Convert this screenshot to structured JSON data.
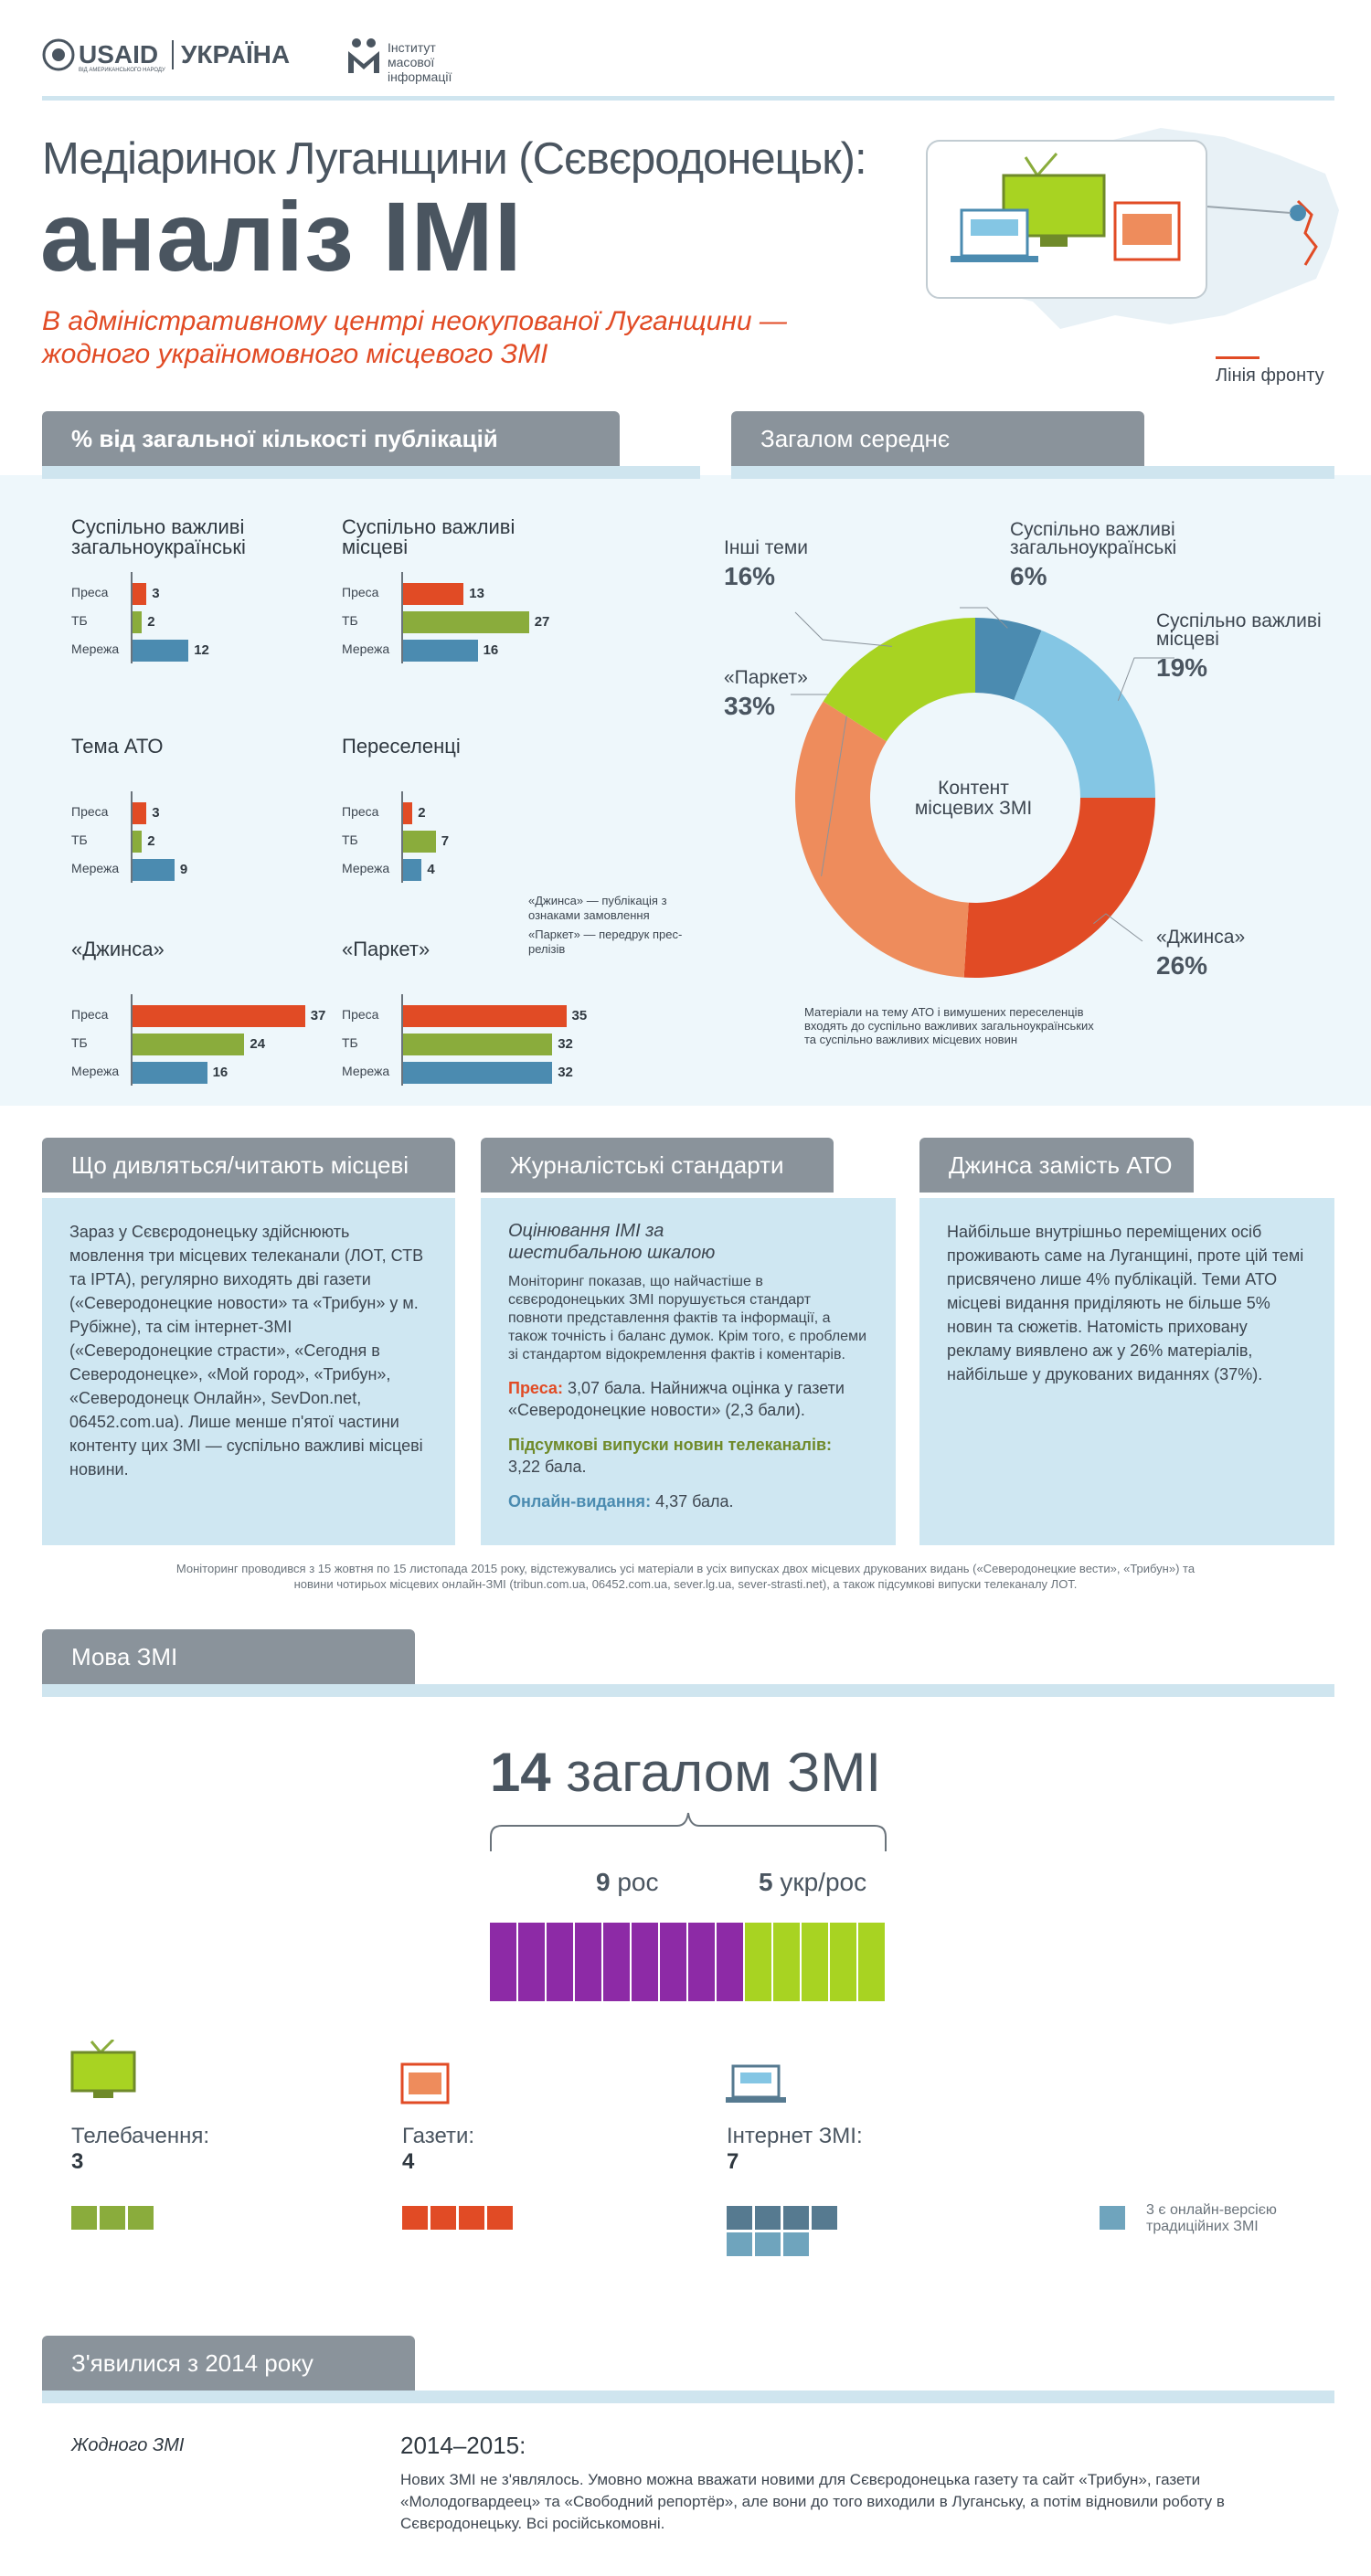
{
  "header": {
    "usaid": "USAID",
    "ukraine": "УКРАЇНА",
    "usaid_sub": "ВІД АМЕРИКАНСЬКОГО НАРОДУ",
    "imi": "Інститут масової інформації"
  },
  "title_line1": "Медіаринок Луганщини (Сєвєродонецьк):",
  "title_line2": "аналіз ІМІ",
  "lead": "В адміністративному центрі неокупованої Луганщини — жодного україномовного місцевого ЗМІ",
  "map_legend": "Лінія фронту",
  "section1_title": "% від загальної кількості публікацій",
  "section2_title": "Загалом середнє",
  "bar_labels": [
    "Преса",
    "ТБ",
    "Мережа"
  ],
  "definitions": {
    "jinsa": "«Джинса» — публікація з ознаками замовлення",
    "parket": "«Паркет» — передрук прес-релізів"
  },
  "donut_center": "Контент місцевих ЗМІ",
  "donut_note": "Матеріали на тему АТО і вимушених переселенців входять до суспільно важливих загальноукраїнських та суспільно важливих місцевих новин",
  "chart_data": [
    {
      "type": "bar",
      "title": "Суспільно важливі загальноукраїнські",
      "categories": [
        "Преса",
        "ТБ",
        "Мережа"
      ],
      "values": [
        3,
        2,
        12
      ],
      "colors": [
        "#e14b25",
        "#8aac3c",
        "#4b8bb0"
      ]
    },
    {
      "type": "bar",
      "title": "Суспільно важливі місцеві",
      "categories": [
        "Преса",
        "ТБ",
        "Мережа"
      ],
      "values": [
        13,
        27,
        16
      ],
      "colors": [
        "#e14b25",
        "#8aac3c",
        "#4b8bb0"
      ]
    },
    {
      "type": "bar",
      "title": "Тема АТО",
      "categories": [
        "Преса",
        "ТБ",
        "Мережа"
      ],
      "values": [
        3,
        2,
        9
      ],
      "colors": [
        "#e14b25",
        "#8aac3c",
        "#4b8bb0"
      ]
    },
    {
      "type": "bar",
      "title": "Переселенці",
      "categories": [
        "Преса",
        "ТБ",
        "Мережа"
      ],
      "values": [
        2,
        7,
        4
      ],
      "colors": [
        "#e14b25",
        "#8aac3c",
        "#4b8bb0"
      ]
    },
    {
      "type": "bar",
      "title": "«Джинса»",
      "categories": [
        "Преса",
        "ТБ",
        "Мережа"
      ],
      "values": [
        37,
        24,
        16
      ],
      "colors": [
        "#e14b25",
        "#8aac3c",
        "#4b8bb0"
      ]
    },
    {
      "type": "bar",
      "title": "«Паркет»",
      "categories": [
        "Преса",
        "ТБ",
        "Мережа"
      ],
      "values": [
        35,
        32,
        32
      ],
      "colors": [
        "#e14b25",
        "#8aac3c",
        "#4b8bb0"
      ]
    },
    {
      "type": "pie",
      "title": "Загалом середнє",
      "slices": [
        {
          "label": "Суспільно важливі загальноукраїнські",
          "value": 6,
          "display": "6%",
          "color": "#4b8bb0"
        },
        {
          "label": "Суспільно важливі місцеві",
          "value": 19,
          "display": "19%",
          "color": "#84c6e4"
        },
        {
          "label": "«Джинса»",
          "value": 26,
          "display": "26%",
          "color": "#e14b25"
        },
        {
          "label": "«Паркет»",
          "value": 33,
          "display": "33%",
          "color": "#ee8c5c"
        },
        {
          "label": "Інші теми",
          "value": 16,
          "display": "16%",
          "color": "#a8d322"
        }
      ]
    }
  ],
  "panels": {
    "watch_title": "Що дивляться/читають місцеві",
    "watch_text": "Зараз у Сєвєродонецьку здійснюють мовлення три місцевих телеканали (ЛОТ, СТВ та ІРТА), регулярно виходять дві газети («Северодонецкие новости» та «Трибун» у м. Рубіжне), та сім інтернет-ЗМІ («Северодонецкие страсти», «Сегодня в Северодонецке», «Мой город», «Трибун», «Северодонецк Онлайн», SevDon.net, 06452.com.ua). Лише менше п'ятої частини контенту цих ЗМІ — суспільно важливі місцеві новини.",
    "std_title": "Журналістські стандарти",
    "std_sub": "Оцінювання ІМІ за шестибальною шкалою",
    "std_text": "Моніторинг показав, що найчастіше в сєвєродонецьких ЗМІ порушується стандарт повноти представлення фактів та інформації, а також точність і баланс думок. Крім того, є проблеми зі стандартом відокремлення фактів і коментарів.",
    "std_press_k": "Преса:",
    "std_press_v": " 3,07 бала. Найнижча оцінка у газети «Северодонецкие новости» (2,3 бали).",
    "std_tv_k": "Підсумкові випуски новин телеканалів:",
    "std_tv_v": " 3,22 бала.",
    "std_online_k": "Онлайн-видання:",
    "std_online_v": " 4,37 бала.",
    "jinsa_title": "Джинса замість АТО",
    "jinsa_text": "Найбільше внутрішньо переміщених осіб проживають саме на Луганщині, проте цій темі присвячено лише 4% публікацій. Теми АТО місцеві видання приділяють не більше 5% новин та сюжетів. Натомість приховану рекламу виявлено аж у 26% матеріалів, найбільше у друкованих виданнях (37%)."
  },
  "monitoring_note": "Моніторинг проводився з 15 жовтня по 15 листопада 2015 року, відстежувались усі матеріали в усіх випусках двох місцевих друкованих видань («Северодонецкие вести», «Трибун») та новини чотирьох місцевих онлайн-ЗМІ (tribun.com.ua, 06452.com.ua, sever.lg.ua, sever-strasti.net), а також підсумкові випуски телеканалу ЛОТ.",
  "language": {
    "title": "Мова ЗМІ",
    "total_num": "14",
    "total_label": " загалом ЗМІ",
    "ros_num": "9",
    "ros_label": " рос",
    "ukr_num": "5",
    "ukr_label": " укр/рос",
    "ros_count": 9,
    "ukr_count": 5,
    "ros_color": "#8d2aa6",
    "ukr_color": "#a8d322"
  },
  "media_types": [
    {
      "label": "Телебачення:",
      "count": "3",
      "n": 3,
      "color": "#8aac3c"
    },
    {
      "label": "Газети:",
      "count": "4",
      "n": 4,
      "color": "#e14b25"
    },
    {
      "label": "Інтернет ЗМІ:",
      "count": "7",
      "n": 7,
      "color": "#567a90"
    }
  ],
  "online_note": "3 є онлайн-версією традиційних ЗМІ",
  "online_note_color": "#6fa4bd",
  "since2014": {
    "title": "З'явилися з 2014 року",
    "left": "Жодного ЗМІ",
    "years": "2014–2015:",
    "text": "Нових ЗМІ не з'являлось. Умовно можна вважати новими для Сєвєродонецька газету та сайт «Трибун», газети «Молодогвардеец» та «Свободний репортёр», але вони до того виходили в Луганську, а потім відновили роботу в Сєвєродонецьку. Всі російськомовні."
  }
}
